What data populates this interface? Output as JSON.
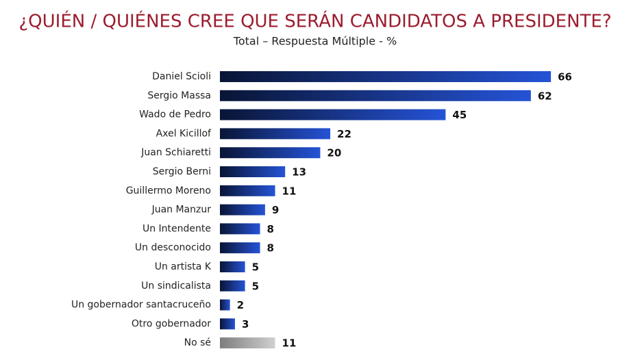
{
  "chart_data": {
    "type": "bar",
    "orientation": "horizontal",
    "title": "¿QUIÉN / QUIÉNES CREE QUE SERÁN CANDIDATOS A PRESIDENTE?",
    "subtitle": "Total – Respuesta Múltiple - %",
    "categories": [
      "Daniel Scioli",
      "Sergio Massa",
      "Wado de Pedro",
      "Axel Kicillof",
      "Juan Schiaretti",
      "Sergio Berni",
      "Guillermo Moreno",
      "Juan Manzur",
      "Un Intendente",
      "Un desconocido",
      "Un artista K",
      "Un sindicalista",
      "Un gobernador santacruceño",
      "Otro gobernador",
      "No sé"
    ],
    "values": [
      66,
      62,
      45,
      22,
      20,
      13,
      11,
      9,
      8,
      8,
      5,
      5,
      2,
      3,
      11
    ],
    "colors": [
      "#2553d6",
      "#2553d6",
      "#2553d6",
      "#2553d6",
      "#2553d6",
      "#2553d6",
      "#2553d6",
      "#2553d6",
      "#2553d6",
      "#2553d6",
      "#2553d6",
      "#2553d6",
      "#2553d6",
      "#2553d6",
      "#d0d0d0"
    ]
  }
}
